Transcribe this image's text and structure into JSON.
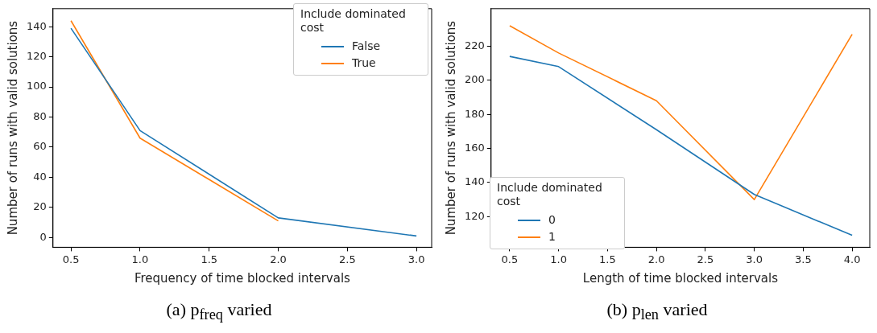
{
  "chart_data": [
    {
      "type": "line",
      "title": "(a) p$_{freq}$ varied",
      "xlabel": "Frequency of time blocked intervals",
      "ylabel": "Number of runs with valid solutions",
      "legend_title": "Include dominated cost",
      "legend": "top right",
      "grid": false,
      "marker": "none",
      "xlim": [
        0.37,
        3.11
      ],
      "xticks": [
        {
          "value": 0.5,
          "label": "0.5"
        },
        {
          "value": 1,
          "label": "1.0"
        },
        {
          "value": 1.5,
          "label": "1.5"
        },
        {
          "value": 2,
          "label": "2.0"
        },
        {
          "value": 2.5,
          "label": "2.5"
        },
        {
          "value": 3,
          "label": "3.0"
        }
      ],
      "ylim": [
        -6.5,
        152
      ],
      "yticks": [
        0,
        20,
        40,
        60,
        80,
        100,
        120,
        140
      ],
      "series": [
        {
          "name": "False",
          "color": "#1f77b4",
          "x": [
            0.5,
            1,
            2,
            3
          ],
          "values": [
            139,
            71,
            13,
            1
          ]
        },
        {
          "name": "True",
          "color": "#ff7f0e",
          "x": [
            0.5,
            1,
            2
          ],
          "values": [
            144,
            66,
            11
          ]
        }
      ]
    },
    {
      "type": "line",
      "title": "(b) p$_{len}$ varied",
      "xlabel": "Length of time blocked intervals",
      "ylabel": "Number of runs with valid solutions",
      "legend_title": "Include dominated cost",
      "legend": "bottom left",
      "grid": false,
      "marker": "none",
      "xlim": [
        0.31,
        4.18
      ],
      "xticks": [
        {
          "value": 0.5,
          "label": "0.5"
        },
        {
          "value": 1,
          "label": "1.0"
        },
        {
          "value": 1.5,
          "label": "1.5"
        },
        {
          "value": 2,
          "label": "2.0"
        },
        {
          "value": 2.5,
          "label": "2.5"
        },
        {
          "value": 3,
          "label": "3.0"
        },
        {
          "value": 3.5,
          "label": "3.5"
        },
        {
          "value": 4,
          "label": "4.0"
        }
      ],
      "ylim": [
        102,
        242
      ],
      "yticks": [
        120,
        140,
        160,
        180,
        200,
        220
      ],
      "series": [
        {
          "name": "0",
          "color": "#1f77b4",
          "x": [
            0.5,
            1,
            2,
            3,
            4
          ],
          "values": [
            214,
            208,
            171,
            133,
            109
          ]
        },
        {
          "name": "1",
          "color": "#ff7f0e",
          "x": [
            0.5,
            1,
            2,
            3,
            4
          ],
          "values": [
            232,
            216,
            188,
            130,
            227
          ]
        }
      ]
    }
  ]
}
